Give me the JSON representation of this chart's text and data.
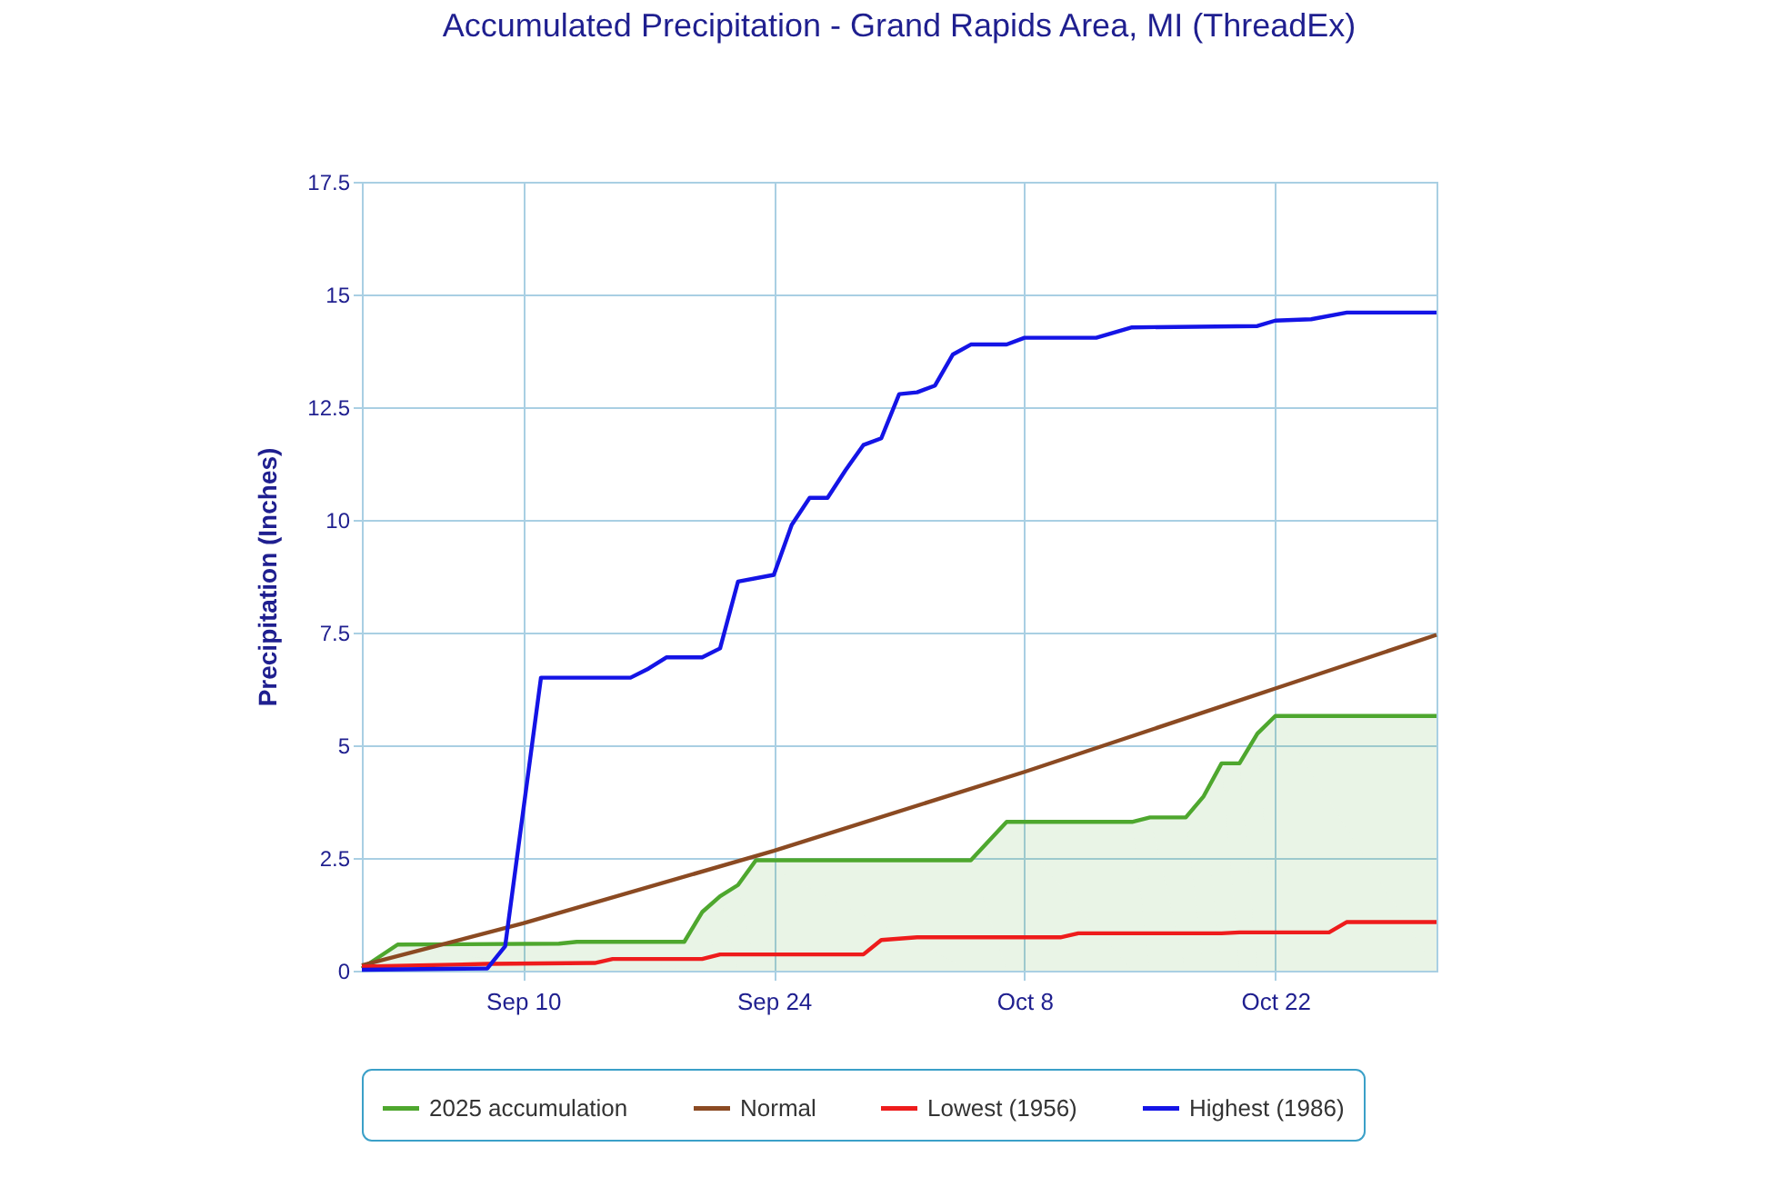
{
  "chart_data": {
    "type": "line",
    "title": "Accumulated Precipitation - Grand Rapids Area, MI (ThreadEx)",
    "ylabel": "Precipitation (Inches)",
    "xlim": [
      "2025-09-01",
      "2025-10-31"
    ],
    "xticks": [
      {
        "value": "2025-09-10",
        "label": "Sep 10"
      },
      {
        "value": "2025-09-24",
        "label": "Sep 24"
      },
      {
        "value": "2025-10-08",
        "label": "Oct 8"
      },
      {
        "value": "2025-10-22",
        "label": "Oct 22"
      }
    ],
    "ylim": [
      0,
      17.5
    ],
    "yticks": [
      0,
      2.5,
      5,
      7.5,
      10,
      12.5,
      15,
      17.5
    ],
    "grid": true,
    "legend": "bottom",
    "marker": "none",
    "line_style": "solid",
    "series": [
      {
        "name": "2025 accumulation",
        "type": "area",
        "color": "#4ea72e",
        "x": [
          "2025-09-01",
          "2025-09-03",
          "2025-09-12",
          "2025-09-13",
          "2025-09-19",
          "2025-09-20",
          "2025-09-21",
          "2025-09-22",
          "2025-09-23",
          "2025-10-05",
          "2025-10-07",
          "2025-10-14",
          "2025-10-15",
          "2025-10-17",
          "2025-10-18",
          "2025-10-19",
          "2025-10-20",
          "2025-10-21",
          "2025-10-22",
          "2025-10-31"
        ],
        "values": [
          0.05,
          0.58,
          0.6,
          0.64,
          0.64,
          1.3,
          1.65,
          1.9,
          2.45,
          2.45,
          3.3,
          3.3,
          3.4,
          3.4,
          3.87,
          4.6,
          4.6,
          5.26,
          5.65,
          5.65
        ]
      },
      {
        "name": "Normal",
        "color": "#8b4a22",
        "x": [
          "2025-09-01",
          "2025-09-10",
          "2025-09-24",
          "2025-10-08",
          "2025-10-22",
          "2025-10-31"
        ],
        "values": [
          0.12,
          1.05,
          2.66,
          4.41,
          6.26,
          7.45
        ]
      },
      {
        "name": "Lowest (1956)",
        "color": "#ee1c1c",
        "x": [
          "2025-09-01",
          "2025-09-08",
          "2025-09-14",
          "2025-09-15",
          "2025-09-20",
          "2025-09-21",
          "2025-09-29",
          "2025-09-30",
          "2025-10-02",
          "2025-10-10",
          "2025-10-11",
          "2025-10-19",
          "2025-10-20",
          "2025-10-25",
          "2025-10-26",
          "2025-10-31"
        ],
        "values": [
          0.09,
          0.15,
          0.17,
          0.26,
          0.26,
          0.36,
          0.36,
          0.68,
          0.74,
          0.74,
          0.83,
          0.83,
          0.85,
          0.85,
          1.08,
          1.08
        ]
      },
      {
        "name": "Highest (1986)",
        "color": "#1414e6",
        "x": [
          "2025-09-01",
          "2025-09-08",
          "2025-09-09",
          "2025-09-11",
          "2025-09-16",
          "2025-09-17",
          "2025-09-18",
          "2025-09-20",
          "2025-09-21",
          "2025-09-22",
          "2025-09-24",
          "2025-09-25",
          "2025-09-26",
          "2025-09-27",
          "2025-09-28",
          "2025-09-29",
          "2025-09-30",
          "2025-10-01",
          "2025-10-02",
          "2025-10-03",
          "2025-10-04",
          "2025-10-05",
          "2025-10-07",
          "2025-10-08",
          "2025-10-12",
          "2025-10-14",
          "2025-10-21",
          "2025-10-22",
          "2025-10-24",
          "2025-10-26",
          "2025-10-31"
        ],
        "values": [
          0.02,
          0.05,
          0.54,
          6.5,
          6.5,
          6.7,
          6.95,
          6.95,
          7.15,
          8.63,
          8.78,
          9.89,
          10.49,
          10.49,
          11.1,
          11.66,
          11.81,
          12.79,
          12.83,
          12.98,
          13.67,
          13.89,
          13.89,
          14.04,
          14.04,
          14.27,
          14.3,
          14.42,
          14.45,
          14.6,
          14.6
        ]
      }
    ]
  }
}
